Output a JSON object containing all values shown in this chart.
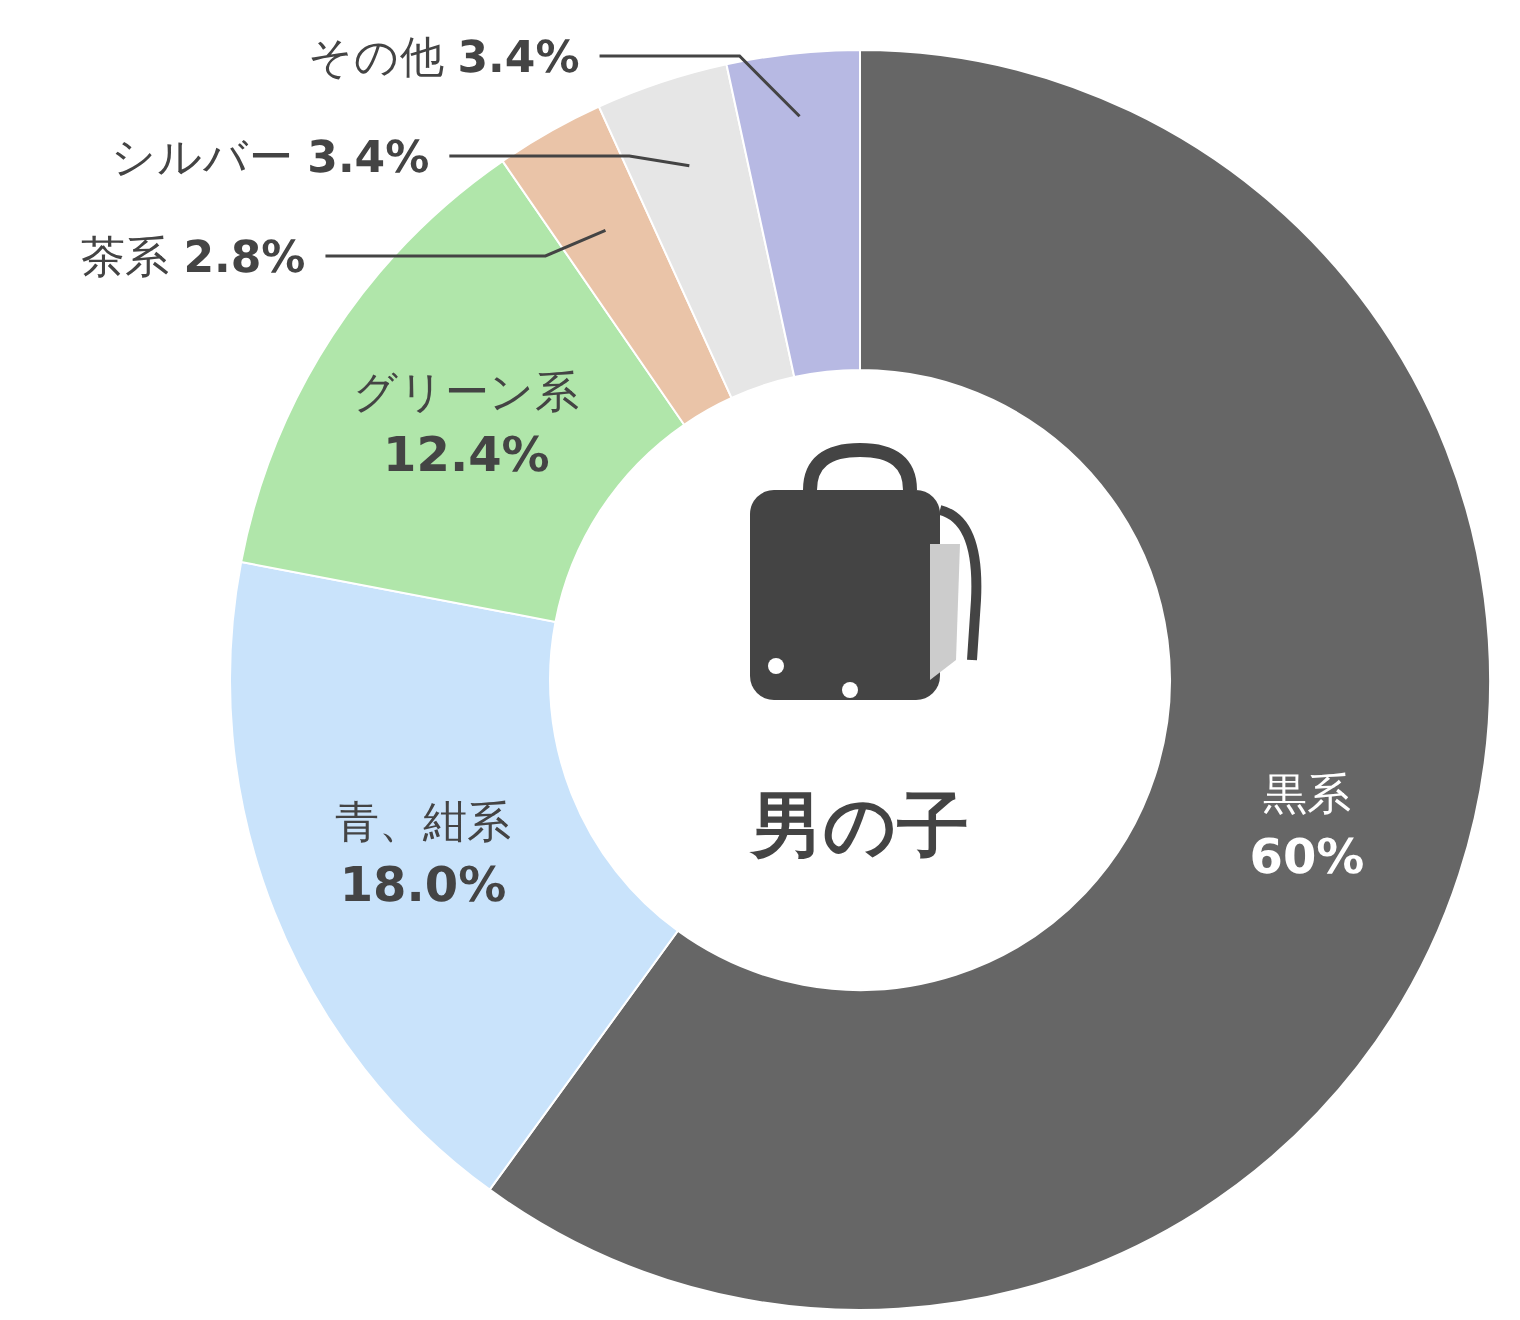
{
  "chart_data": {
    "type": "donut",
    "categories": [
      "黒系",
      "青、紺系",
      "グリーン系",
      "茶系",
      "シルバー",
      "その他"
    ],
    "values": [
      60,
      18.0,
      12.4,
      2.8,
      3.4,
      3.4
    ],
    "value_labels": [
      "60%",
      "18.0%",
      "12.4%",
      "2.8%",
      "3.4%",
      "3.4%"
    ],
    "colors": [
      "#666666",
      "#c9e3fb",
      "#b0e6aa",
      "#eac4a8",
      "#e6e6e6",
      "#b7b9e3"
    ],
    "annotations": [
      "男の子"
    ]
  }
}
